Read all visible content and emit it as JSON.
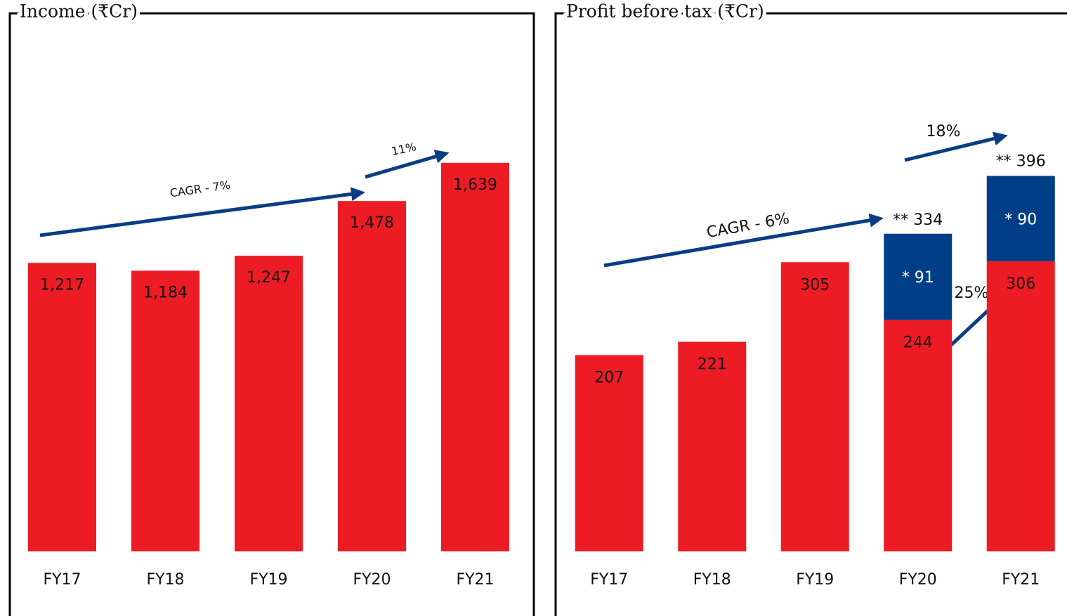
{
  "chart_data": [
    {
      "type": "bar",
      "title": "Income (₹Cr)",
      "categories": [
        "FY17",
        "FY18",
        "FY19",
        "FY20",
        "FY21"
      ],
      "values": [
        1217,
        1184,
        1247,
        1478,
        1639
      ],
      "value_labels": [
        "1,217",
        "1,184",
        "1,247",
        "1,478",
        "1,639"
      ],
      "color": "#ed1c24",
      "ylim": [
        0,
        2000
      ],
      "annotations": [
        "CAGR - 7%",
        "11%"
      ]
    },
    {
      "type": "stacked_bar",
      "title": "Profit before tax (₹Cr)",
      "categories": [
        "FY17",
        "FY18",
        "FY19",
        "FY20",
        "FY21"
      ],
      "series": [
        {
          "color": "#ed1c24",
          "values": [
            207,
            221,
            305,
            244,
            306
          ]
        },
        {
          "color": "#003f87",
          "values": [
            null,
            null,
            null,
            91,
            90
          ],
          "value_labels": [
            null,
            null,
            null,
            "* 91",
            "* 90"
          ]
        }
      ],
      "totals": {
        "values": [
          null,
          null,
          null,
          334,
          396
        ],
        "value_labels": [
          null,
          null,
          null,
          "** 334",
          "** 396"
        ]
      },
      "ylim": [
        0,
        500
      ],
      "annotations": [
        "CAGR - 6%",
        "18%",
        "25%"
      ]
    }
  ]
}
